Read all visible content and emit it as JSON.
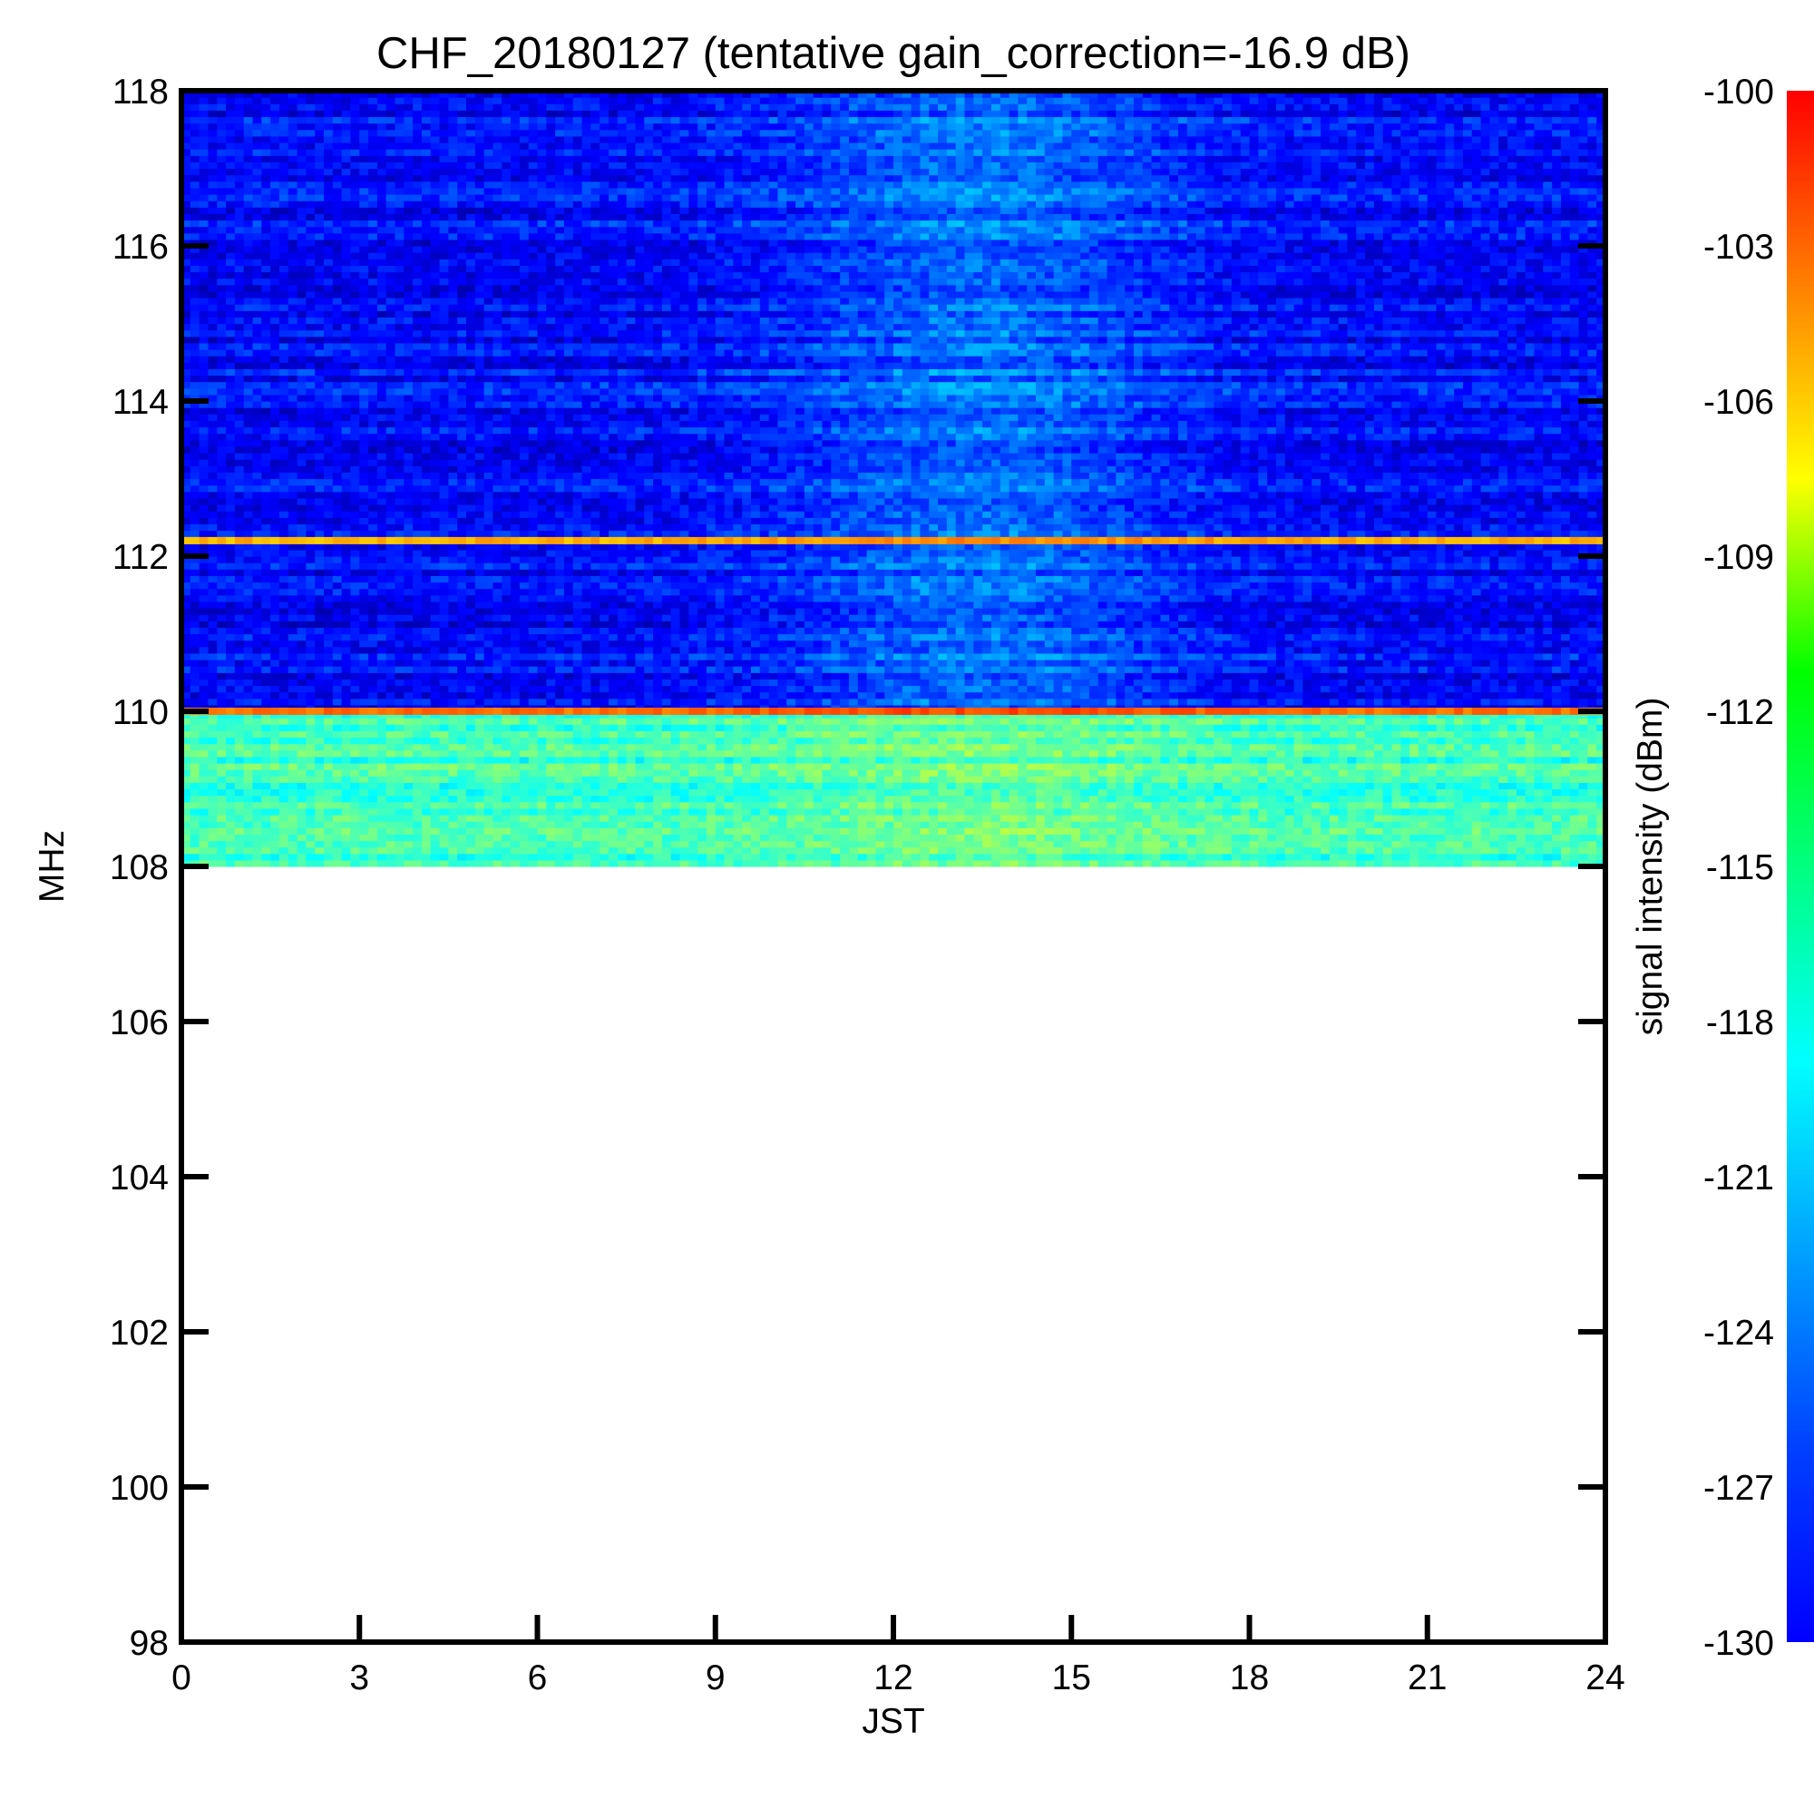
{
  "chart_data": {
    "type": "heatmap",
    "title": "CHF_20180127 (tentative gain_correction=-16.9 dB)",
    "xlabel": "JST",
    "ylabel": "MHz",
    "colorbar_label": "signal intensity (dBm)",
    "xlim": [
      0,
      24
    ],
    "ylim": [
      98,
      118
    ],
    "x_ticks": [
      0,
      3,
      6,
      9,
      12,
      15,
      18,
      21,
      24
    ],
    "y_ticks": [
      98,
      100,
      102,
      104,
      106,
      108,
      110,
      112,
      114,
      116,
      118
    ],
    "colorbar_range": [
      -130,
      -100
    ],
    "colorbar_ticks": [
      -100,
      -103,
      -106,
      -109,
      -112,
      -115,
      -118,
      -121,
      -124,
      -127,
      -130
    ],
    "colormap": "jet",
    "data_frequency_range_mhz": [
      108,
      118
    ],
    "grid": false,
    "features": [
      {
        "frequency_mhz": 112.2,
        "approx_intensity_dbm": -109
      },
      {
        "frequency_mhz": 110.0,
        "approx_intensity_dbm": -107
      },
      {
        "frequency_range_mhz": [
          108,
          110
        ],
        "approx_intensity_dbm": -117
      },
      {
        "frequency_range_mhz": [
          110,
          118
        ],
        "approx_intensity_dbm": -126
      }
    ]
  }
}
